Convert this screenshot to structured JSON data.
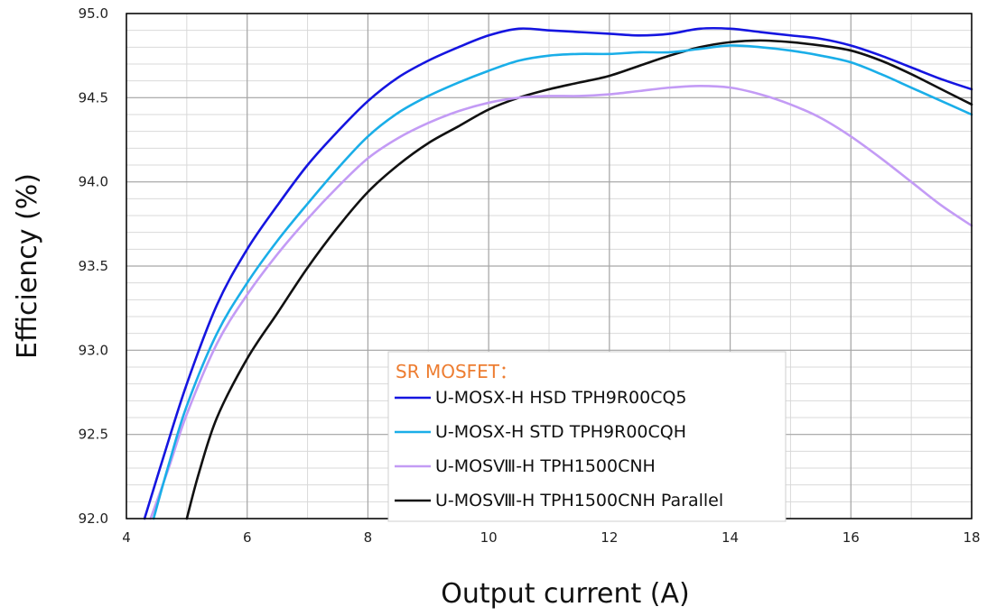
{
  "chart_data": {
    "type": "line",
    "xlabel": "Output current (A)",
    "ylabel": "Efficiency (%)",
    "xlim": [
      4,
      18
    ],
    "ylim": [
      92.0,
      95.0
    ],
    "x_ticks": [
      4,
      6,
      8,
      10,
      12,
      14,
      16,
      18
    ],
    "x_tick_labels": [
      "4",
      "6",
      "8",
      "10",
      "12",
      "14",
      "16",
      "18"
    ],
    "y_ticks": [
      92.0,
      92.5,
      93.0,
      93.5,
      94.0,
      94.5,
      95.0
    ],
    "y_tick_labels": [
      "92.0",
      "92.5",
      "93.0",
      "93.5",
      "94.0",
      "94.5",
      "95.0"
    ],
    "x_minor_step": 1,
    "y_minor_step": 0.1,
    "grid": true,
    "legend": {
      "title": "SR MOSFET：",
      "title_color": "#ED7D31",
      "placement": "bottom-center"
    },
    "series": [
      {
        "name": "U-MOSⅩ-H HSD TPH9R00CQ5",
        "color": "#1515E0",
        "x": [
          4.3,
          4.6,
          5.0,
          5.5,
          6.0,
          6.5,
          7.0,
          7.5,
          8.0,
          8.5,
          9.0,
          9.5,
          10.0,
          10.5,
          11.0,
          11.5,
          12.0,
          12.5,
          13.0,
          13.5,
          14.0,
          14.5,
          15.0,
          15.5,
          16.0,
          16.5,
          17.0,
          17.5,
          18.0
        ],
        "y": [
          92.0,
          92.35,
          92.8,
          93.27,
          93.6,
          93.86,
          94.1,
          94.3,
          94.48,
          94.62,
          94.72,
          94.8,
          94.87,
          94.91,
          94.9,
          94.89,
          94.88,
          94.87,
          94.88,
          94.91,
          94.91,
          94.89,
          94.87,
          94.85,
          94.81,
          94.75,
          94.68,
          94.61,
          94.55
        ]
      },
      {
        "name": "U-MOSⅩ-H STD TPH9R00CQH",
        "color": "#1AAEE8",
        "x": [
          4.45,
          4.7,
          5.0,
          5.5,
          6.0,
          6.5,
          7.0,
          7.5,
          8.0,
          8.5,
          9.0,
          9.5,
          10.0,
          10.5,
          11.0,
          11.5,
          12.0,
          12.5,
          13.0,
          13.5,
          14.0,
          14.5,
          15.0,
          15.5,
          16.0,
          16.5,
          17.0,
          17.5,
          18.0
        ],
        "y": [
          92.0,
          92.32,
          92.67,
          93.1,
          93.4,
          93.65,
          93.87,
          94.08,
          94.27,
          94.41,
          94.51,
          94.59,
          94.66,
          94.72,
          94.75,
          94.76,
          94.76,
          94.77,
          94.77,
          94.79,
          94.81,
          94.8,
          94.78,
          94.75,
          94.71,
          94.64,
          94.56,
          94.48,
          94.4
        ]
      },
      {
        "name": "U-MOSⅧ-H TPH1500CNH",
        "color": "#C39BF5",
        "x": [
          4.4,
          4.7,
          5.0,
          5.5,
          6.0,
          6.5,
          7.0,
          7.5,
          8.0,
          8.5,
          9.0,
          9.5,
          10.0,
          10.5,
          11.0,
          11.5,
          12.0,
          12.5,
          13.0,
          13.5,
          14.0,
          14.5,
          15.0,
          15.5,
          16.0,
          16.5,
          17.0,
          17.5,
          18.0
        ],
        "y": [
          92.0,
          92.3,
          92.62,
          93.04,
          93.33,
          93.57,
          93.78,
          93.97,
          94.14,
          94.26,
          94.35,
          94.42,
          94.47,
          94.5,
          94.51,
          94.51,
          94.52,
          94.54,
          94.56,
          94.57,
          94.56,
          94.52,
          94.46,
          94.38,
          94.27,
          94.14,
          94.0,
          93.86,
          93.74
        ]
      },
      {
        "name": "U-MOSⅧ-H TPH1500CNH Parallel",
        "color": "#111111",
        "x": [
          5.0,
          5.2,
          5.5,
          6.0,
          6.5,
          7.0,
          7.5,
          8.0,
          8.5,
          9.0,
          9.5,
          10.0,
          10.5,
          11.0,
          11.5,
          12.0,
          12.5,
          13.0,
          13.5,
          14.0,
          14.5,
          15.0,
          15.5,
          16.0,
          16.5,
          17.0,
          17.5,
          18.0
        ],
        "y": [
          92.0,
          92.27,
          92.6,
          92.95,
          93.22,
          93.49,
          93.73,
          93.94,
          94.1,
          94.23,
          94.33,
          94.43,
          94.5,
          94.55,
          94.59,
          94.63,
          94.69,
          94.75,
          94.8,
          94.83,
          94.84,
          94.83,
          94.81,
          94.78,
          94.72,
          94.64,
          94.55,
          94.46
        ]
      }
    ]
  }
}
